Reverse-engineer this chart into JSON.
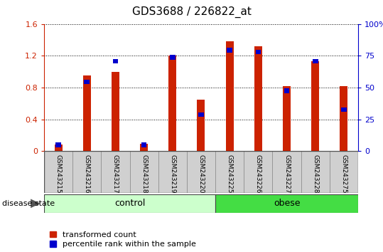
{
  "title": "GDS3688 / 226822_at",
  "samples": [
    "GSM243215",
    "GSM243216",
    "GSM243217",
    "GSM243218",
    "GSM243219",
    "GSM243220",
    "GSM243225",
    "GSM243226",
    "GSM243227",
    "GSM243228",
    "GSM243275"
  ],
  "red_values": [
    0.08,
    0.95,
    1.0,
    0.09,
    1.2,
    0.65,
    1.38,
    1.32,
    0.82,
    1.13,
    0.82
  ],
  "blue_values": [
    0.08,
    0.87,
    1.13,
    0.08,
    1.18,
    0.46,
    1.27,
    1.25,
    0.76,
    1.13,
    0.52
  ],
  "ylim_left": [
    0,
    1.6
  ],
  "ylim_right": [
    0,
    100
  ],
  "yticks_left": [
    0,
    0.4,
    0.8,
    1.2,
    1.6
  ],
  "yticks_right": [
    0,
    25,
    50,
    75,
    100
  ],
  "ytick_labels_left": [
    "0",
    "0.4",
    "0.8",
    "1.2",
    "1.6"
  ],
  "ytick_labels_right": [
    "0",
    "25",
    "50",
    "75",
    "100%"
  ],
  "control_count": 6,
  "obese_count": 5,
  "bar_width": 0.5,
  "red_color": "#CC2200",
  "blue_color": "#0000CC",
  "tick_bg_color": "#D0D0D0",
  "legend_labels": [
    "transformed count",
    "percentile rank within the sample"
  ],
  "group_label": "disease state",
  "control_color": "#CCFFCC",
  "obese_color": "#44DD44",
  "left_axis_color": "#CC2200",
  "right_axis_color": "#0000CC"
}
